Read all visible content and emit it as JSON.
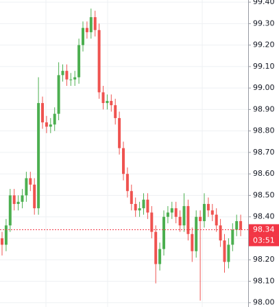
{
  "chart_data": {
    "type": "candlestick",
    "open": [
      98.3,
      98.27,
      98.36,
      98.5,
      98.46,
      98.47,
      98.5,
      98.58,
      98.55,
      98.44,
      98.93,
      98.84,
      98.82,
      98.83,
      98.88,
      99.06,
      99.08,
      99.04,
      99.04,
      99.05,
      99.2,
      99.28,
      99.26,
      99.33,
      99.27,
      98.98,
      98.93,
      98.94,
      98.92,
      98.86,
      98.72,
      98.6,
      98.52,
      98.46,
      98.43,
      98.44,
      98.48,
      98.42,
      98.33,
      98.18,
      98.25,
      98.4,
      98.42,
      98.44,
      98.4,
      98.36,
      98.45,
      98.32,
      98.24,
      98.4,
      98.38,
      98.46,
      98.43,
      98.41,
      98.36,
      98.29,
      98.19,
      98.27,
      98.34,
      98.38
    ],
    "high": [
      98.33,
      98.39,
      98.53,
      98.53,
      98.5,
      98.53,
      98.61,
      98.61,
      98.58,
      99.05,
      98.96,
      98.87,
      98.86,
      98.91,
      99.12,
      99.11,
      99.11,
      99.07,
      99.08,
      99.23,
      99.31,
      99.31,
      99.37,
      99.36,
      99.3,
      99.01,
      98.97,
      98.97,
      98.95,
      98.89,
      98.75,
      98.63,
      98.55,
      98.49,
      98.47,
      98.51,
      98.51,
      98.45,
      98.36,
      98.28,
      98.43,
      98.45,
      98.47,
      98.47,
      98.43,
      98.51,
      98.48,
      98.35,
      98.43,
      98.43,
      98.51,
      98.49,
      98.46,
      98.44,
      98.39,
      98.32,
      98.3,
      98.37,
      98.41,
      98.41
    ],
    "low": [
      98.22,
      98.24,
      98.33,
      98.43,
      98.43,
      98.44,
      98.47,
      98.52,
      98.41,
      98.41,
      98.81,
      98.79,
      98.79,
      98.8,
      98.85,
      99.03,
      99.01,
      99.01,
      99.01,
      99.02,
      99.17,
      99.23,
      99.23,
      99.24,
      98.95,
      98.9,
      98.9,
      98.89,
      98.83,
      98.69,
      98.57,
      98.49,
      98.43,
      98.4,
      98.4,
      98.41,
      98.39,
      98.3,
      98.09,
      98.15,
      98.22,
      98.37,
      98.39,
      98.37,
      98.33,
      98.33,
      98.29,
      98.19,
      98.21,
      98.01,
      98.35,
      98.4,
      98.38,
      98.33,
      98.26,
      98.14,
      98.16,
      98.24,
      98.31,
      98.31
    ],
    "close": [
      98.27,
      98.36,
      98.5,
      98.46,
      98.47,
      98.5,
      98.58,
      98.55,
      98.44,
      98.93,
      98.84,
      98.82,
      98.83,
      98.88,
      99.06,
      99.08,
      99.04,
      99.04,
      99.05,
      99.2,
      99.28,
      99.26,
      99.33,
      99.27,
      98.98,
      98.93,
      98.94,
      98.92,
      98.86,
      98.72,
      98.6,
      98.52,
      98.46,
      98.43,
      98.44,
      98.48,
      98.42,
      98.33,
      98.18,
      98.25,
      98.4,
      98.42,
      98.44,
      98.4,
      98.36,
      98.45,
      98.32,
      98.24,
      98.4,
      98.38,
      98.46,
      98.43,
      98.41,
      98.36,
      98.29,
      98.19,
      98.27,
      98.34,
      98.38,
      98.34
    ],
    "up_color": "#4caf50",
    "down_color": "#ef5350",
    "ylim": [
      97.98,
      99.41
    ],
    "yticks": [
      {
        "value": 98.0,
        "label": "98.00"
      },
      {
        "value": 98.1,
        "label": "98.10"
      },
      {
        "value": 98.2,
        "label": "98.20"
      },
      {
        "value": 98.3,
        "label": "98.30"
      },
      {
        "value": 98.4,
        "label": "98.40"
      },
      {
        "value": 98.5,
        "label": "98.50"
      },
      {
        "value": 98.6,
        "label": "98.60"
      },
      {
        "value": 98.7,
        "label": "98.70"
      },
      {
        "value": 98.8,
        "label": "98.80"
      },
      {
        "value": 98.9,
        "label": "98.90"
      },
      {
        "value": 99.0,
        "label": "99.00"
      },
      {
        "value": 99.1,
        "label": "99.10"
      },
      {
        "value": 99.2,
        "label": "99.20"
      },
      {
        "value": 99.3,
        "label": "99.30"
      },
      {
        "value": 99.4,
        "label": "99.40"
      }
    ],
    "grid": true,
    "price_line": {
      "value": 98.34,
      "countdown": "03:51",
      "color": "#f23645"
    }
  }
}
